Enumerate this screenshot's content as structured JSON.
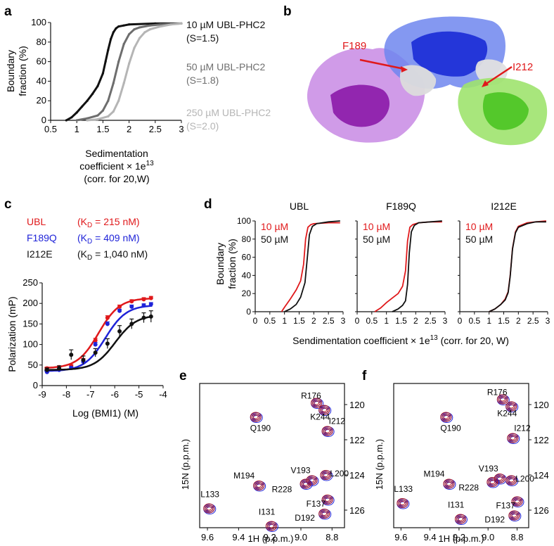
{
  "panel_labels": [
    "a",
    "b",
    "c",
    "d",
    "e",
    "f"
  ],
  "colors": {
    "red": "#e0191b",
    "blue": "#1f23d8",
    "black": "#111111",
    "grey_dark": "#555555",
    "grey_mid": "#7a7a7a",
    "grey_light": "#b3b3b3",
    "purple": "#a23fc6",
    "blue_domain": "#2b4bd9",
    "green": "#6fd23c"
  },
  "panel_b": {
    "labels": [
      "F189",
      "I212"
    ]
  },
  "panel_c": {
    "legend": [
      {
        "name": "UBL",
        "kd_text": "(K",
        "kd_sub": "D",
        "kd_rest": " = 215 nM)",
        "color": "#e0191b"
      },
      {
        "name": "F189Q",
        "kd_text": "(K",
        "kd_sub": "D",
        "kd_rest": " = 409 nM)",
        "color": "#1f23d8"
      },
      {
        "name": "I212E",
        "kd_text": "(K",
        "kd_sub": "D",
        "kd_rest": " = 1,040 nM)",
        "color": "#111111"
      }
    ]
  },
  "panel_e": {
    "ylabel": "15N (p.p.m.)",
    "xlabel": "1H (p.p.m.)"
  },
  "panel_f": {
    "ylabel": "15N (p.p.m.)",
    "xlabel": "1H (p.p.m.)"
  },
  "chart_data": [
    {
      "panel": "a",
      "type": "line",
      "ylabel": "Boundary fraction (%)",
      "xlabel_lines": [
        "Sedimentation",
        "coefficient × 1e13",
        "(corr. for 20,W)"
      ],
      "xlim": [
        0.5,
        3
      ],
      "ylim": [
        0,
        100
      ],
      "xticks": [
        "0.5",
        "1",
        "1.5",
        "2",
        "2.5",
        "3"
      ],
      "yticks": [
        "0",
        "20",
        "40",
        "60",
        "80",
        "100"
      ],
      "series": [
        {
          "name": "10 µM UBL-PHC2",
          "label2": "(S=1.5)",
          "color": "#111111",
          "x": [
            0.8,
            0.9,
            1.0,
            1.1,
            1.2,
            1.3,
            1.4,
            1.5,
            1.55,
            1.6,
            1.65,
            1.7,
            1.75,
            1.8,
            1.9,
            2.0,
            2.5,
            3.0
          ],
          "y": [
            0,
            3,
            8,
            14,
            20,
            27,
            35,
            48,
            60,
            72,
            83,
            90,
            94,
            96,
            97,
            98,
            99,
            99
          ]
        },
        {
          "name": "50 µM UBL-PHC2",
          "label2": "(S=1.8)",
          "color": "#6e6e6e",
          "x": [
            1.0,
            1.2,
            1.4,
            1.5,
            1.6,
            1.7,
            1.8,
            1.9,
            2.0,
            2.1,
            2.2,
            2.4,
            2.6,
            3.0
          ],
          "y": [
            0,
            2,
            5,
            10,
            20,
            38,
            60,
            78,
            88,
            93,
            95,
            97,
            98,
            99
          ]
        },
        {
          "name": "250 µM UBL-PHC2",
          "label2": "(S=2.0)",
          "color": "#b5b5b5",
          "x": [
            1.2,
            1.4,
            1.6,
            1.7,
            1.8,
            1.9,
            2.0,
            2.1,
            2.2,
            2.3,
            2.4,
            2.6,
            2.8,
            3.0
          ],
          "y": [
            0,
            1,
            4,
            9,
            20,
            38,
            58,
            74,
            84,
            90,
            93,
            96,
            98,
            99
          ]
        }
      ]
    },
    {
      "panel": "c",
      "type": "scatter",
      "ylabel": "Polarization (mP)",
      "xlabel": "Log (BMI1) (M)",
      "xlim": [
        -9,
        -4
      ],
      "ylim": [
        0,
        250
      ],
      "xticks": [
        "-9",
        "-8",
        "-7",
        "-6",
        "-5",
        "-4"
      ],
      "yticks": [
        "0",
        "50",
        "100",
        "150",
        "200",
        "250"
      ],
      "series": [
        {
          "name": "UBL",
          "color": "#e0191b",
          "x": [
            -8.8,
            -8.3,
            -7.8,
            -7.3,
            -6.8,
            -6.3,
            -5.8,
            -5.3,
            -4.8,
            -4.5
          ],
          "y": [
            42,
            45,
            48,
            62,
            110,
            165,
            192,
            205,
            210,
            213
          ],
          "err": [
            3,
            3,
            3,
            4,
            5,
            5,
            4,
            4,
            4,
            4
          ],
          "bottom": 42,
          "top": 213,
          "logec50": -6.67
        },
        {
          "name": "F189Q",
          "color": "#1f23d8",
          "x": [
            -8.8,
            -8.3,
            -7.8,
            -7.3,
            -6.8,
            -6.3,
            -5.8,
            -5.3,
            -4.8,
            -4.5
          ],
          "y": [
            33,
            38,
            43,
            58,
            100,
            150,
            182,
            192,
            195,
            198
          ],
          "err": [
            3,
            3,
            3,
            4,
            5,
            5,
            4,
            4,
            4,
            4
          ],
          "bottom": 35,
          "top": 196,
          "logec50": -6.39
        },
        {
          "name": "I212E",
          "color": "#111111",
          "x": [
            -8.8,
            -8.3,
            -7.8,
            -7.3,
            -6.8,
            -6.3,
            -5.8,
            -5.3,
            -4.8,
            -4.5
          ],
          "y": [
            38,
            42,
            75,
            62,
            80,
            102,
            132,
            150,
            165,
            168
          ],
          "err": [
            5,
            6,
            12,
            10,
            10,
            12,
            14,
            12,
            12,
            14
          ],
          "bottom": 38,
          "top": 172,
          "logec50": -5.98
        }
      ]
    },
    {
      "panel": "d",
      "type": "line",
      "ylabel": "Boundary fraction (%)",
      "xlabel": "Sendimentation coefficient × 1e13 (corr. for 20, W)",
      "xlim": [
        0,
        3
      ],
      "ylim": [
        0,
        100
      ],
      "xticks": [
        "0",
        "0.5",
        "1",
        "1.5",
        "2",
        "2.5",
        "3"
      ],
      "yticks": [
        "0",
        "20",
        "40",
        "60",
        "80",
        "100"
      ],
      "legend": [
        "10 µM",
        "50 µM"
      ],
      "subplots": [
        {
          "title": "UBL",
          "series": [
            {
              "name": "10 µM",
              "color": "#e0191b",
              "x": [
                0.9,
                1.0,
                1.2,
                1.4,
                1.55,
                1.65,
                1.72,
                1.8,
                1.9,
                2.0,
                2.5,
                2.9
              ],
              "y": [
                0,
                5,
                14,
                24,
                34,
                52,
                80,
                93,
                96,
                97,
                98,
                98
              ]
            },
            {
              "name": "50 µM",
              "color": "#111111",
              "x": [
                1.0,
                1.2,
                1.4,
                1.55,
                1.7,
                1.78,
                1.85,
                1.95,
                2.1,
                2.5,
                2.9
              ],
              "y": [
                0,
                3,
                8,
                16,
                32,
                60,
                85,
                94,
                97,
                99,
                100
              ]
            }
          ]
        },
        {
          "title": "F189Q",
          "series": [
            {
              "name": "10 µM",
              "color": "#e0191b",
              "x": [
                0.6,
                0.8,
                1.0,
                1.2,
                1.4,
                1.55,
                1.65,
                1.72,
                1.8,
                1.9,
                2.1,
                2.5,
                2.9
              ],
              "y": [
                0,
                4,
                10,
                15,
                20,
                28,
                45,
                78,
                93,
                96,
                98,
                99,
                99
              ]
            },
            {
              "name": "50 µM",
              "color": "#111111",
              "x": [
                1.2,
                1.4,
                1.55,
                1.65,
                1.72,
                1.78,
                1.85,
                1.95,
                2.1,
                2.5,
                2.9
              ],
              "y": [
                0,
                3,
                7,
                12,
                30,
                65,
                88,
                95,
                98,
                99,
                100
              ]
            }
          ]
        },
        {
          "title": "I212E",
          "series": [
            {
              "name": "10 µM",
              "color": "#e0191b",
              "x": [
                1.0,
                1.2,
                1.4,
                1.55,
                1.65,
                1.72,
                1.8,
                1.9,
                2.0,
                2.3,
                2.6,
                2.95
              ],
              "y": [
                0,
                3,
                8,
                14,
                22,
                40,
                70,
                88,
                94,
                98,
                99,
                100
              ]
            },
            {
              "name": "50 µM",
              "color": "#111111",
              "x": [
                1.0,
                1.2,
                1.4,
                1.55,
                1.65,
                1.72,
                1.8,
                1.9,
                2.0,
                2.3,
                2.6,
                2.95
              ],
              "y": [
                0,
                3,
                8,
                13,
                21,
                39,
                69,
                87,
                93,
                97,
                99,
                99
              ]
            }
          ]
        }
      ]
    },
    {
      "panel": "e",
      "type": "scatter",
      "xlim": [
        9.65,
        8.72
      ],
      "ylim": [
        118.8,
        127.0
      ],
      "xticks": [
        "9.6",
        "9.4",
        "9.2",
        "9.0",
        "8.8"
      ],
      "yticks": [
        "120",
        "122",
        "124",
        "126"
      ],
      "peaks": [
        {
          "label": "R176",
          "x": 8.9,
          "y": 119.9
        },
        {
          "label": "K244",
          "x": 8.85,
          "y": 120.3
        },
        {
          "label": "Q190",
          "x": 9.29,
          "y": 120.7
        },
        {
          "label": "I212",
          "x": 8.83,
          "y": 121.5
        },
        {
          "label": "V193",
          "x": 8.93,
          "y": 124.3
        },
        {
          "label": "R228",
          "x": 8.97,
          "y": 124.5
        },
        {
          "label": "M194",
          "x": 9.27,
          "y": 124.6
        },
        {
          "label": "L200",
          "x": 8.84,
          "y": 124.0
        },
        {
          "label": "L133",
          "x": 9.59,
          "y": 125.9
        },
        {
          "label": "F137",
          "x": 8.83,
          "y": 125.4
        },
        {
          "label": "I131",
          "x": 9.19,
          "y": 126.9
        },
        {
          "label": "D192",
          "x": 8.85,
          "y": 126.2
        }
      ]
    },
    {
      "panel": "f",
      "type": "scatter",
      "xlim": [
        9.65,
        8.72
      ],
      "ylim": [
        118.8,
        127.0
      ],
      "xticks": [
        "9.6",
        "9.4",
        "9.2",
        "9.0",
        "8.8"
      ],
      "yticks": [
        "120",
        "122",
        "124",
        "126"
      ],
      "peaks": [
        {
          "label": "R176",
          "x": 8.9,
          "y": 119.7
        },
        {
          "label": "K244",
          "x": 8.84,
          "y": 120.1
        },
        {
          "label": "Q190",
          "x": 9.29,
          "y": 120.7
        },
        {
          "label": "I212",
          "x": 8.83,
          "y": 121.9
        },
        {
          "label": "V193",
          "x": 8.92,
          "y": 124.2
        },
        {
          "label": "R228",
          "x": 8.97,
          "y": 124.4
        },
        {
          "label": "M194",
          "x": 9.27,
          "y": 124.5
        },
        {
          "label": "L200",
          "x": 8.84,
          "y": 124.3
        },
        {
          "label": "L133",
          "x": 9.59,
          "y": 125.6
        },
        {
          "label": "F137",
          "x": 8.8,
          "y": 125.5
        },
        {
          "label": "I131",
          "x": 9.19,
          "y": 126.5
        },
        {
          "label": "D192",
          "x": 8.82,
          "y": 126.3
        }
      ]
    }
  ]
}
